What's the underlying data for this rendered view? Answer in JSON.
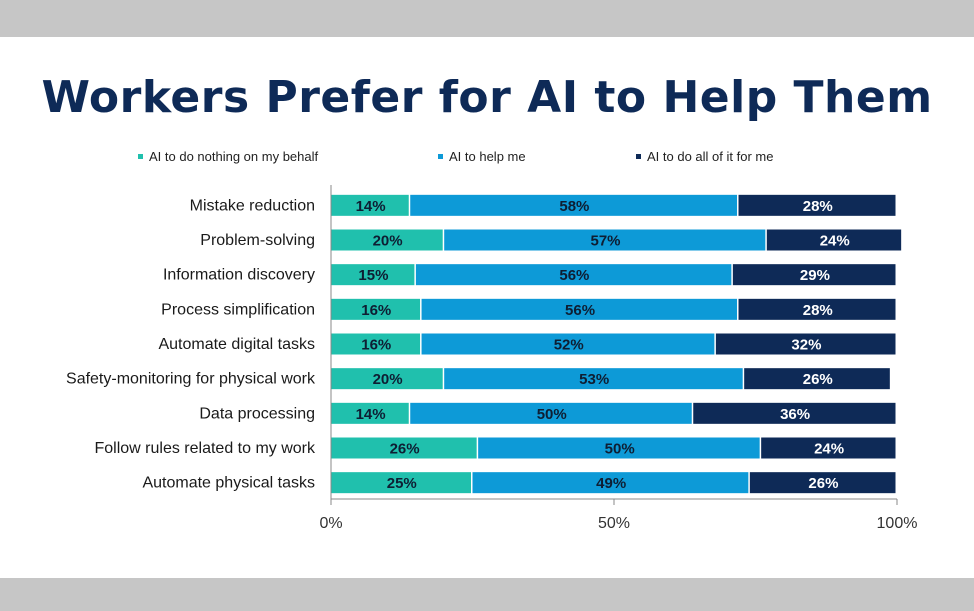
{
  "title": "Workers Prefer for AI to Help Them",
  "colors": {
    "nothing": "#20c0ad",
    "help": "#0d9ad7",
    "all": "#0e2a57",
    "band": "#c6c6c6",
    "title": "#0e2a57"
  },
  "chart_data": {
    "type": "bar",
    "orientation": "horizontal",
    "stacked": true,
    "categories": [
      "Mistake reduction",
      "Problem-solving",
      "Information discovery",
      "Process simplification",
      "Automate digital tasks",
      "Safety-monitoring for physical work",
      "Data processing",
      "Follow rules related to my work",
      "Automate physical tasks"
    ],
    "series": [
      {
        "name": "AI to do nothing on my behalf",
        "values": [
          14,
          20,
          15,
          16,
          16,
          20,
          14,
          26,
          25
        ]
      },
      {
        "name": "AI to help me",
        "values": [
          58,
          57,
          56,
          56,
          52,
          53,
          50,
          50,
          49
        ]
      },
      {
        "name": "AI to do all of it for me",
        "values": [
          28,
          24,
          29,
          28,
          32,
          26,
          36,
          24,
          26
        ]
      }
    ],
    "xlim": [
      0,
      100
    ],
    "xticks": [
      "0%",
      "50%",
      "100%"
    ],
    "legend": "top",
    "grid": false
  }
}
